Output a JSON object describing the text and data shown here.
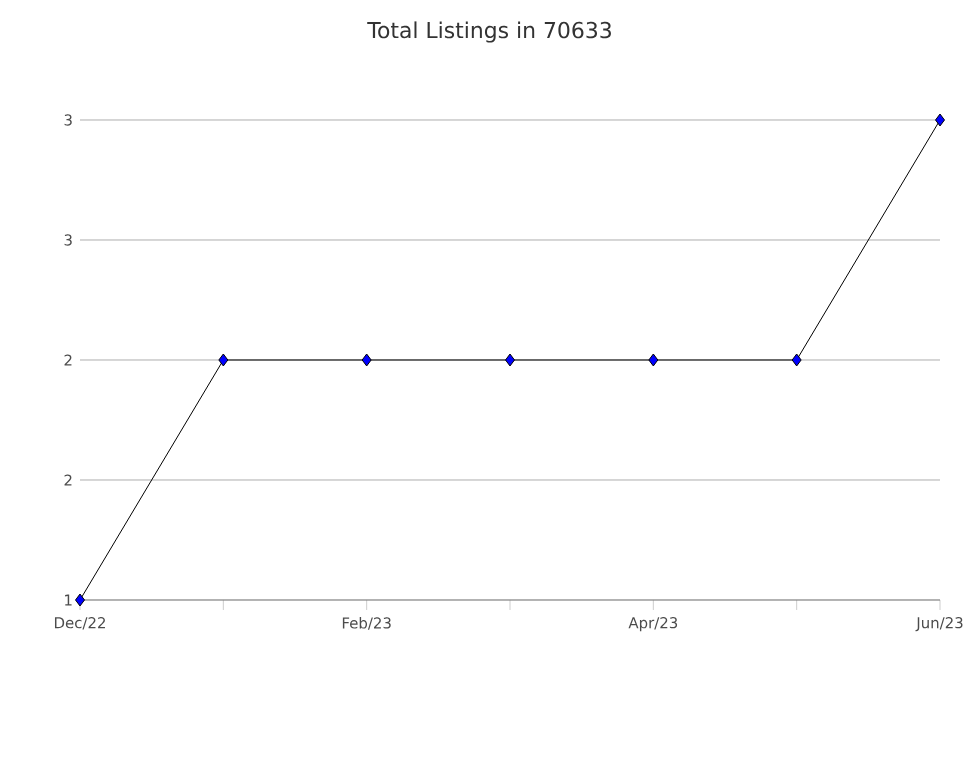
{
  "chart_data": {
    "type": "line",
    "title": "Total Listings in 70633",
    "categories": [
      "Dec/22",
      null,
      "Feb/23",
      null,
      "Apr/23",
      null,
      "Jun/23"
    ],
    "series": [
      {
        "color": "#0000ff",
        "values": [
          1,
          2,
          2,
          2,
          2,
          2,
          3
        ]
      }
    ],
    "ylim": [
      1,
      3
    ],
    "yticks": [
      1,
      {
        "value": 1.5,
        "label": "2"
      },
      2,
      {
        "value": 2.5,
        "label": "3"
      },
      3
    ],
    "grid": "y",
    "marker": "diamond",
    "line_style": "solid"
  }
}
